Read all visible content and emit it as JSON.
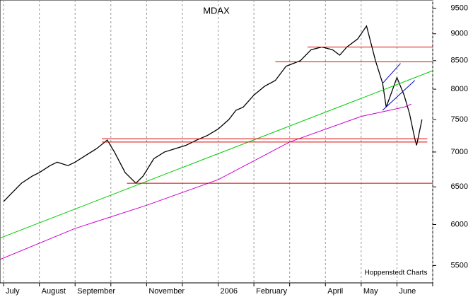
{
  "chart_data": {
    "type": "line",
    "title": "MDAX",
    "annotation": "Hoppenstedt Charts",
    "log_y": true,
    "grid": true,
    "xlim": [
      -0.1,
      12
    ],
    "ylim": [
      5300,
      9670
    ],
    "yticks": [
      5500,
      6000,
      6500,
      7000,
      7500,
      8000,
      8500,
      9000,
      9500
    ],
    "xticks": [
      {
        "value": 0,
        "label": "July"
      },
      {
        "value": 1,
        "label": "August"
      },
      {
        "value": 2,
        "label": "September"
      },
      {
        "value": 3,
        "label": null
      },
      {
        "value": 4,
        "label": "November"
      },
      {
        "value": 5,
        "label": null
      },
      {
        "value": 6,
        "label": "2006"
      },
      {
        "value": 7,
        "label": "February"
      },
      {
        "value": 8,
        "label": null
      },
      {
        "value": 9,
        "label": "April"
      },
      {
        "value": 10,
        "label": "May"
      },
      {
        "value": 11,
        "label": "June"
      },
      {
        "value": 12,
        "label": null
      }
    ],
    "series": [
      {
        "color": "#000000",
        "x": [
          0.0,
          0.2,
          0.5,
          0.8,
          1.0,
          1.3,
          1.5,
          1.8,
          2.0,
          2.3,
          2.6,
          2.9,
          3.1,
          3.4,
          3.7,
          3.9,
          4.2,
          4.5,
          4.8,
          5.1,
          5.4,
          5.7,
          6.0,
          6.3,
          6.5,
          6.7,
          7.0,
          7.3,
          7.6,
          7.9,
          8.1,
          8.3,
          8.6,
          8.9,
          9.2,
          9.4,
          9.6,
          9.9,
          10.15,
          10.4,
          10.6,
          10.7,
          11.0,
          11.2,
          11.35,
          11.5,
          11.55,
          11.7
        ],
        "values": [
          6300,
          6400,
          6550,
          6650,
          6700,
          6800,
          6850,
          6800,
          6850,
          6950,
          7050,
          7180,
          7000,
          6700,
          6550,
          6650,
          6900,
          7000,
          7050,
          7100,
          7180,
          7250,
          7350,
          7500,
          7650,
          7700,
          7900,
          8050,
          8150,
          8400,
          8450,
          8500,
          8700,
          8750,
          8700,
          8600,
          8750,
          8900,
          9150,
          8500,
          8100,
          7700,
          8200,
          7900,
          7600,
          7200,
          7100,
          7500
        ]
      },
      {
        "color": "#cc00cc",
        "x": [
          -0.1,
          2,
          4,
          6,
          8,
          10,
          11.2,
          11.4
        ],
        "values": [
          5570,
          5950,
          6250,
          6600,
          7150,
          7550,
          7700,
          7750
        ]
      },
      {
        "color": "#00cc00",
        "x": [
          -0.1,
          12
        ],
        "values": [
          5830,
          8320
        ]
      },
      {
        "color": "#dd0000",
        "x": [
          3.45,
          12
        ],
        "values": [
          6550,
          6550
        ]
      },
      {
        "color": "#dd0000",
        "x": [
          2.75,
          11.85
        ],
        "values": [
          7200,
          7200
        ]
      },
      {
        "color": "#dd0000",
        "x": [
          2.75,
          11.85
        ],
        "values": [
          7150,
          7150
        ]
      },
      {
        "color": "#dd0000",
        "x": [
          7.6,
          12
        ],
        "values": [
          8480,
          8480
        ]
      },
      {
        "color": "#dd0000",
        "x": [
          8.5,
          12
        ],
        "values": [
          8750,
          8750
        ]
      },
      {
        "color": "#0000cc",
        "x": [
          10.6,
          11.1
        ],
        "values": [
          8100,
          8450
        ]
      },
      {
        "color": "#0000cc",
        "x": [
          10.6,
          11.5
        ],
        "values": [
          7650,
          8150
        ]
      }
    ]
  }
}
